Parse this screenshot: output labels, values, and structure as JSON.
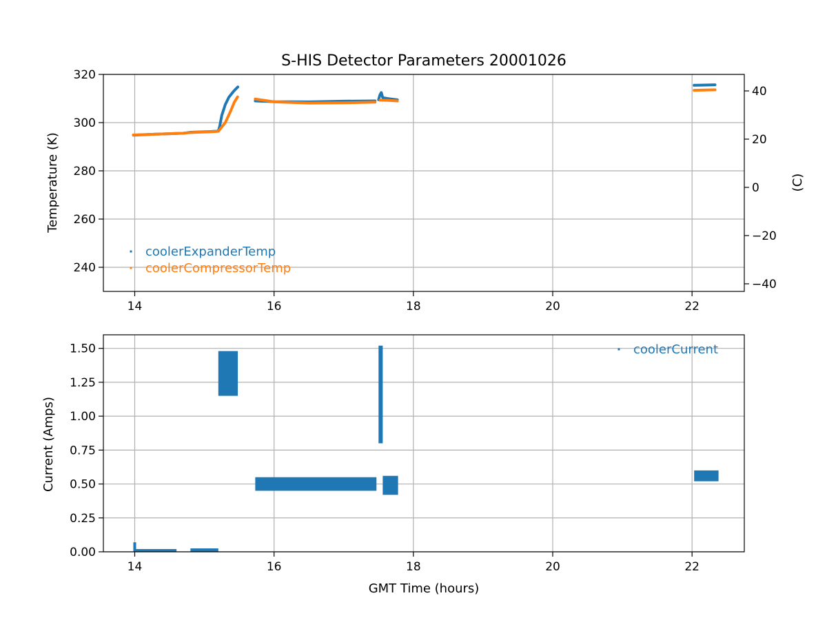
{
  "chart_data": [
    {
      "type": "scatter",
      "title": "S-HIS Detector Parameters 20001026",
      "xlabel": "",
      "ylabel": "Temperature (K)",
      "y2label": "(C)",
      "xlim": [
        13.55,
        22.75
      ],
      "ylim": [
        230,
        320
      ],
      "y2lim": [
        -43.15,
        46.85
      ],
      "x_ticks": [
        "14",
        "16",
        "18",
        "20",
        "22"
      ],
      "y_ticks": [
        "240",
        "260",
        "280",
        "300",
        "320"
      ],
      "y2_ticks": [
        "−40",
        "−20",
        "0",
        "20",
        "40"
      ],
      "grid": true,
      "legend_position": "lower-left",
      "series": [
        {
          "name": "coolerExpanderTemp",
          "color": "#1f77b4",
          "segments": [
            [
              [
                13.98,
                294.8
              ],
              [
                14.3,
                295.2
              ],
              [
                14.7,
                295.6
              ],
              [
                14.8,
                296.0
              ],
              [
                15.1,
                296.3
              ],
              [
                15.2,
                296.5
              ],
              [
                15.22,
                298.5
              ],
              [
                15.25,
                303
              ],
              [
                15.3,
                307.5
              ],
              [
                15.35,
                310.5
              ],
              [
                15.42,
                313.0
              ],
              [
                15.48,
                314.8
              ]
            ],
            [
              [
                15.73,
                309.0
              ],
              [
                16.0,
                308.7
              ],
              [
                16.5,
                308.6
              ],
              [
                17.0,
                308.9
              ],
              [
                17.45,
                309.0
              ]
            ],
            [
              [
                17.5,
                309.5
              ],
              [
                17.52,
                311.5
              ],
              [
                17.54,
                312.5
              ],
              [
                17.56,
                310.3
              ],
              [
                17.65,
                309.9
              ],
              [
                17.77,
                309.5
              ]
            ],
            [
              [
                22.03,
                315.5
              ],
              [
                22.33,
                315.7
              ]
            ]
          ]
        },
        {
          "name": "coolerCompressorTemp",
          "color": "#ff7f0e",
          "segments": [
            [
              [
                13.98,
                294.9
              ],
              [
                14.3,
                295.2
              ],
              [
                14.7,
                295.6
              ],
              [
                14.8,
                295.9
              ],
              [
                15.1,
                296.2
              ],
              [
                15.2,
                296.4
              ],
              [
                15.3,
                300
              ],
              [
                15.38,
                305
              ],
              [
                15.43,
                308.5
              ],
              [
                15.48,
                310.8
              ]
            ],
            [
              [
                15.73,
                309.8
              ],
              [
                16.0,
                308.6
              ],
              [
                16.5,
                308.1
              ],
              [
                17.0,
                308.2
              ],
              [
                17.45,
                308.5
              ]
            ],
            [
              [
                17.52,
                309.3
              ],
              [
                17.65,
                309.2
              ],
              [
                17.77,
                309.0
              ]
            ],
            [
              [
                22.03,
                313.4
              ],
              [
                22.33,
                313.6
              ]
            ]
          ]
        }
      ]
    },
    {
      "type": "scatter",
      "title": "",
      "xlabel": "GMT Time (hours)",
      "ylabel": "Current (Amps)",
      "xlim": [
        13.55,
        22.75
      ],
      "ylim": [
        0.0,
        1.6
      ],
      "x_ticks": [
        "14",
        "16",
        "18",
        "20",
        "22"
      ],
      "y_ticks": [
        "0.00",
        "0.25",
        "0.50",
        "0.75",
        "1.00",
        "1.25",
        "1.50"
      ],
      "grid": true,
      "legend_position": "upper-right",
      "series": [
        {
          "name": "coolerCurrent",
          "color": "#1f77b4",
          "bands": [
            {
              "x0": 13.98,
              "x1": 14.02,
              "y0": 0.0,
              "y1": 0.07
            },
            {
              "x0": 14.0,
              "x1": 14.6,
              "y0": 0.0,
              "y1": 0.02
            },
            {
              "x0": 14.8,
              "x1": 15.2,
              "y0": 0.0,
              "y1": 0.025
            },
            {
              "x0": 15.2,
              "x1": 15.48,
              "y0": 1.15,
              "y1": 1.48
            },
            {
              "x0": 15.73,
              "x1": 17.47,
              "y0": 0.45,
              "y1": 0.55
            },
            {
              "x0": 17.5,
              "x1": 17.56,
              "y0": 0.8,
              "y1": 1.52
            },
            {
              "x0": 17.56,
              "x1": 17.78,
              "y0": 0.42,
              "y1": 0.56
            },
            {
              "x0": 22.03,
              "x1": 22.38,
              "y0": 0.52,
              "y1": 0.6
            }
          ]
        }
      ]
    }
  ]
}
